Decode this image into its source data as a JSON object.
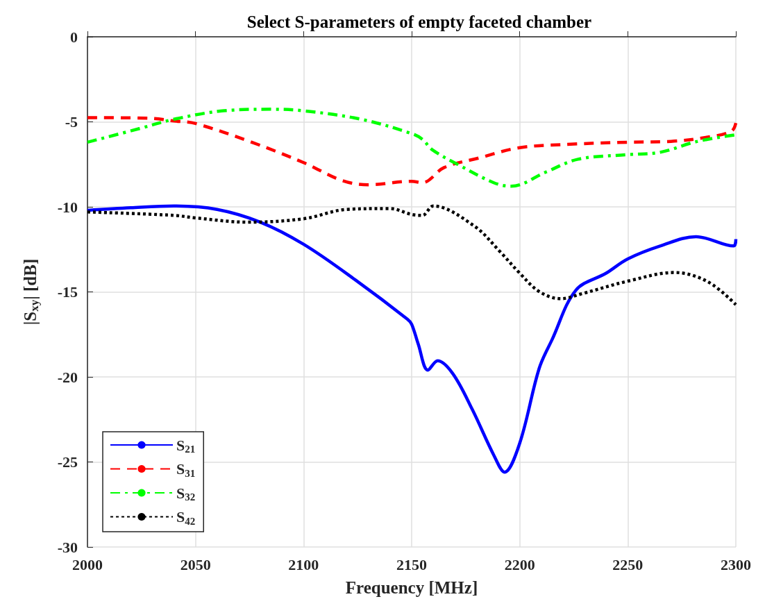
{
  "chart_data": {
    "type": "line",
    "title": "Select S-parameters of empty faceted chamber",
    "xlabel": "Frequency [MHz]",
    "ylabel": "|S$_{xy}$| [dB]",
    "xlim": [
      2000,
      2300
    ],
    "xticks": [
      2000,
      2050,
      2100,
      2150,
      2200,
      2250,
      2300
    ],
    "ylim": [
      -30,
      0
    ],
    "yticks": [
      -30,
      -25,
      -20,
      -15,
      -10,
      -5,
      0
    ],
    "grid": true,
    "legend": "bottom left",
    "marker": "none",
    "series": [
      {
        "name": "S$_{21}$",
        "color": "#0000ff",
        "line_style": "solid",
        "x": [
          2000,
          2020,
          2040,
          2060,
          2080,
          2100,
          2124,
          2148,
          2150,
          2153,
          2157.5,
          2162,
          2169,
          2178,
          2188,
          2193,
          2200,
          2209,
          2215,
          2226,
          2240,
          2250,
          2265,
          2281.6,
          2299,
          2300
        ],
        "values": [
          -10.2,
          -10.05,
          -9.95,
          -10.15,
          -10.9,
          -12.2,
          -14.3,
          -16.6,
          -16.9,
          -18.05,
          -19.6,
          -19.05,
          -19.8,
          -21.9,
          -24.6,
          -25.6,
          -23.9,
          -19.5,
          -17.8,
          -14.9,
          -13.9,
          -13.06,
          -12.3,
          -11.75,
          -12.3,
          -11.9
        ]
      },
      {
        "name": "S$_{31}$",
        "color": "#ff0000",
        "line_style": "dashed",
        "x": [
          2000,
          2030,
          2040,
          2050,
          2076,
          2100,
          2118,
          2130,
          2150,
          2155,
          2165,
          2181,
          2200,
          2225,
          2250,
          2270,
          2287,
          2298,
          2300
        ],
        "values": [
          -4.75,
          -4.8,
          -4.95,
          -5.1,
          -6.2,
          -7.4,
          -8.46,
          -8.7,
          -8.5,
          -8.58,
          -7.69,
          -7.13,
          -6.52,
          -6.31,
          -6.2,
          -6.15,
          -5.9,
          -5.55,
          -5.07
        ]
      },
      {
        "name": "S$_{32}$",
        "color": "#00ff00",
        "line_style": "dashdot",
        "x": [
          2000,
          2024,
          2040,
          2063,
          2085,
          2100,
          2127,
          2150,
          2155,
          2159.6,
          2172,
          2188,
          2196,
          2212,
          2227,
          2250,
          2265,
          2281.6,
          2300
        ],
        "values": [
          -6.2,
          -5.4,
          -4.85,
          -4.35,
          -4.26,
          -4.35,
          -4.86,
          -5.69,
          -6.03,
          -6.65,
          -7.55,
          -8.58,
          -8.79,
          -7.96,
          -7.2,
          -6.93,
          -6.79,
          -6.17,
          -5.76
        ]
      },
      {
        "name": "S$_{42}$",
        "color": "#000000",
        "line_style": "dotted",
        "x": [
          2000,
          2040,
          2050,
          2074,
          2100,
          2120,
          2140,
          2150,
          2155,
          2160,
          2179,
          2191,
          2200,
          2209,
          2219,
          2229,
          2250,
          2271.6,
          2287,
          2300
        ],
        "values": [
          -10.3,
          -10.5,
          -10.65,
          -10.9,
          -10.7,
          -10.15,
          -10.1,
          -10.45,
          -10.5,
          -9.95,
          -11.13,
          -12.65,
          -13.9,
          -14.98,
          -15.4,
          -15.1,
          -14.37,
          -13.86,
          -14.4,
          -15.75
        ]
      }
    ]
  }
}
